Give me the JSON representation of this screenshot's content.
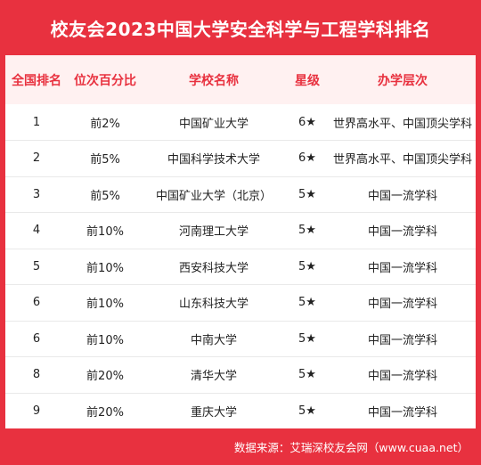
{
  "title": "校友会2023中国大学安全科学与工程学科排名",
  "headers": [
    "全国排名",
    "位次百分比",
    "学校名称",
    "星级",
    "办学层次"
  ],
  "rows": [
    {
      "rank": "1",
      "percentile": "前2%",
      "school": "中国矿业大学",
      "stars": "6★",
      "level": "世界高水平、中国顶尖学科"
    },
    {
      "rank": "2",
      "percentile": "前5%",
      "school": "中国科学技术大学",
      "stars": "6★",
      "level": "世界高水平、中国顶尖学科"
    },
    {
      "rank": "3",
      "percentile": "前5%",
      "school": "中国矿业大学（北京）",
      "stars": "5★",
      "level": "中国一流学科"
    },
    {
      "rank": "4",
      "percentile": "前10%",
      "school": "河南理工大学",
      "stars": "5★",
      "level": "中国一流学科"
    },
    {
      "rank": "5",
      "percentile": "前10%",
      "school": "西安科技大学",
      "stars": "5★",
      "level": "中国一流学科"
    },
    {
      "rank": "6",
      "percentile": "前10%",
      "school": "山东科技大学",
      "stars": "5★",
      "level": "中国一流学科"
    },
    {
      "rank": "6",
      "percentile": "前10%",
      "school": "中南大学",
      "stars": "5★",
      "level": "中国一流学科"
    },
    {
      "rank": "8",
      "percentile": "前20%",
      "school": "清华大学",
      "stars": "5★",
      "level": "中国一流学科"
    },
    {
      "rank": "9",
      "percentile": "前20%",
      "school": "重庆大学",
      "stars": "5★",
      "level": "中国一流学科"
    }
  ],
  "footer": "数据来源：艾瑞深校友会网（www.cuaa.net）",
  "colors": {
    "accent": "#e8313f",
    "header_bg": "#fff1f1",
    "text": "#222222"
  }
}
